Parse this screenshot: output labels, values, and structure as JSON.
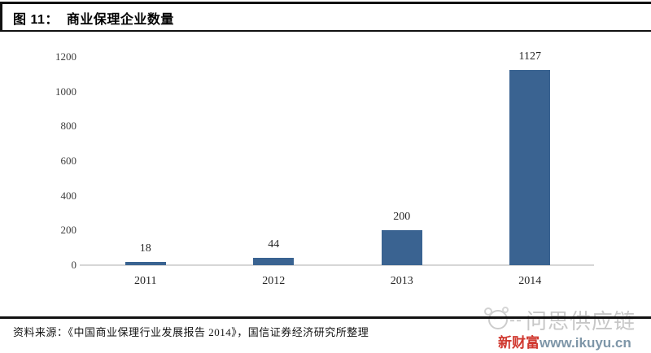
{
  "figure": {
    "label": "图 11：",
    "title": "商业保理企业数量"
  },
  "chart_data": {
    "type": "bar",
    "title": "商业保理企业数量",
    "categories": [
      "2011",
      "2012",
      "2013",
      "2014"
    ],
    "values": [
      18,
      44,
      200,
      1127
    ],
    "data_labels": [
      "18",
      "44",
      "200",
      "1127"
    ],
    "xlabel": "",
    "ylabel": "",
    "ylim": [
      0,
      1200
    ],
    "yticks": [
      0,
      200,
      400,
      600,
      800,
      1000,
      1200
    ],
    "grid": false,
    "legend": false,
    "bar_color": "#3a6391",
    "axis_line_color": "#d6d6d6",
    "tick_label_color": "#3d3d3d"
  },
  "source": {
    "text": "资料来源：《中国商业保理行业发展报告 2014》，国信证券经济研究所整理"
  },
  "watermark": {
    "brand_gray": "问思供应链",
    "brand_red": "新财富",
    "url": "www.ikuyu.cn",
    "red_color": "#d0382f",
    "url_color": "#7e96a8",
    "gray_color": "#c7c7c7"
  }
}
